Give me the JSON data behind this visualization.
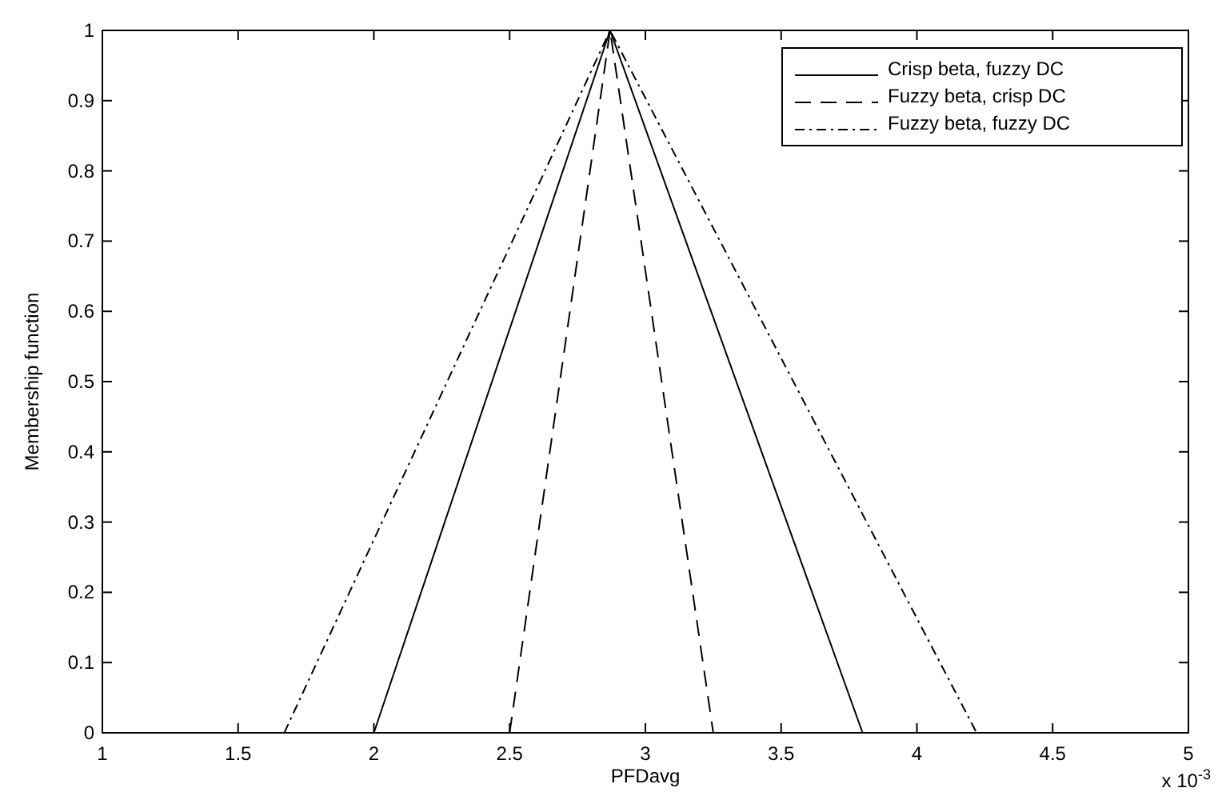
{
  "chart_data": {
    "type": "line",
    "xlabel": "PFDavg",
    "ylabel": "Membership function",
    "annotations": [
      "x 10$^{-3}$"
    ],
    "xlim": [
      1,
      5
    ],
    "xticks": [
      1,
      1.5,
      2,
      2.5,
      3,
      3.5,
      4,
      4.5,
      5
    ],
    "ylim": [
      0,
      1
    ],
    "yticks": [
      0,
      0.1,
      0.2,
      0.3,
      0.4,
      0.5,
      0.6,
      0.7,
      0.8,
      0.9,
      1
    ],
    "series": [
      {
        "name": "Crisp beta, fuzzy DC",
        "color": "#000000",
        "line_style": "solid",
        "x": [
          2.0,
          2.87,
          3.8
        ],
        "values": [
          0,
          1,
          0
        ]
      },
      {
        "name": "Fuzzy beta, crisp DC",
        "color": "#000000",
        "line_style": "dashed",
        "x": [
          2.5,
          2.87,
          3.25
        ],
        "values": [
          0,
          1,
          0
        ]
      },
      {
        "name": "Fuzzy beta, fuzzy DC",
        "color": "#000000",
        "line_style": "dotted",
        "x": [
          1.67,
          2.87,
          4.22
        ],
        "values": [
          0,
          1,
          0
        ]
      }
    ],
    "legend": "top right",
    "grid": false
  }
}
